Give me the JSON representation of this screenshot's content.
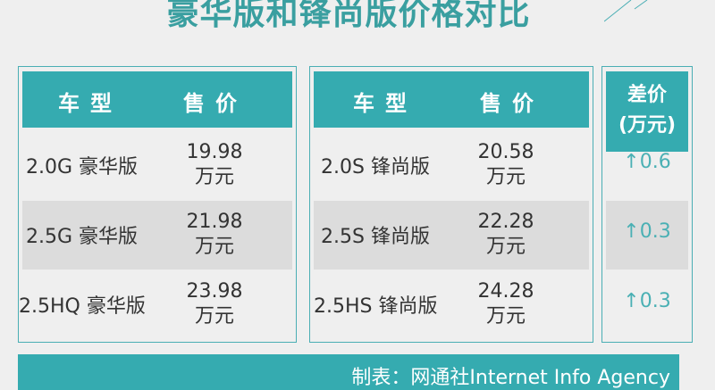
{
  "title": "豪华版和锋尚版价格对比",
  "colors": {
    "accent": "#35abb0",
    "title": "#3a9fa0"
  },
  "left": {
    "headers": [
      "车型",
      "售价"
    ],
    "rows": [
      {
        "model": "2.0G 豪华版",
        "price": "19.98",
        "unit": "万元"
      },
      {
        "model": "2.5G 豪华版",
        "price": "21.98",
        "unit": "万元"
      },
      {
        "model": "2.5HQ 豪华版",
        "price": "23.98",
        "unit": "万元"
      }
    ]
  },
  "right": {
    "headers": [
      "车型",
      "售价"
    ],
    "rows": [
      {
        "model": "2.0S 锋尚版",
        "price": "20.58",
        "unit": "万元"
      },
      {
        "model": "2.5S 锋尚版",
        "price": "22.28",
        "unit": "万元"
      },
      {
        "model": "2.5HS 锋尚版",
        "price": "24.28",
        "unit": "万元"
      }
    ]
  },
  "diff": {
    "header_line1": "差价",
    "header_line2": "(万元)",
    "values": [
      "↑0.6",
      "↑0.3",
      "↑0.3"
    ]
  },
  "footer": "制表：网通社Internet Info Agency"
}
